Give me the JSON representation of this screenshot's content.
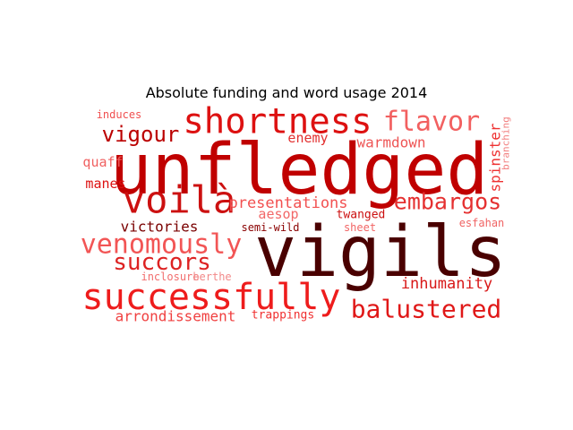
{
  "chart_data": {
    "type": "wordcloud",
    "title": "Absolute funding and word usage 2014",
    "words": [
      {
        "text": "unfledged",
        "color": "#c00000"
      },
      {
        "text": "vigils",
        "color": "#4a0000"
      },
      {
        "text": "shortness",
        "color": "#dd1111"
      },
      {
        "text": "successfully",
        "color": "#ee1c1c"
      },
      {
        "text": "voilà",
        "color": "#cc1010"
      },
      {
        "text": "venomously",
        "color": "#f25555"
      },
      {
        "text": "flavor",
        "color": "#f26060"
      },
      {
        "text": "balustered",
        "color": "#e01818"
      },
      {
        "text": "embargos",
        "color": "#e53030"
      },
      {
        "text": "succors",
        "color": "#dd2222"
      },
      {
        "text": "vigour",
        "color": "#bb0000"
      },
      {
        "text": "inhumanity",
        "color": "#d81818"
      },
      {
        "text": "presentations",
        "color": "#f25050"
      },
      {
        "text": "arrondissement",
        "color": "#f04040"
      },
      {
        "text": "warmdown",
        "color": "#ee5555"
      },
      {
        "text": "enemy",
        "color": "#e23030"
      },
      {
        "text": "victories",
        "color": "#7a0000"
      },
      {
        "text": "spinster",
        "color": "#ee3030"
      },
      {
        "text": "quaff",
        "color": "#f06060"
      },
      {
        "text": "manes",
        "color": "#dd1010"
      },
      {
        "text": "aesop",
        "color": "#f26868"
      },
      {
        "text": "trappings",
        "color": "#f03030"
      },
      {
        "text": "twanged",
        "color": "#cc1010"
      },
      {
        "text": "semi-wild",
        "color": "#8a0000"
      },
      {
        "text": "sheet",
        "color": "#f26565"
      },
      {
        "text": "induces",
        "color": "#f05050"
      },
      {
        "text": "branching",
        "color": "#f28080"
      },
      {
        "text": "esfahan",
        "color": "#f06464"
      },
      {
        "text": "inclosure",
        "color": "#f26e6e"
      },
      {
        "text": "berthe",
        "color": "#f28a8a"
      }
    ]
  }
}
